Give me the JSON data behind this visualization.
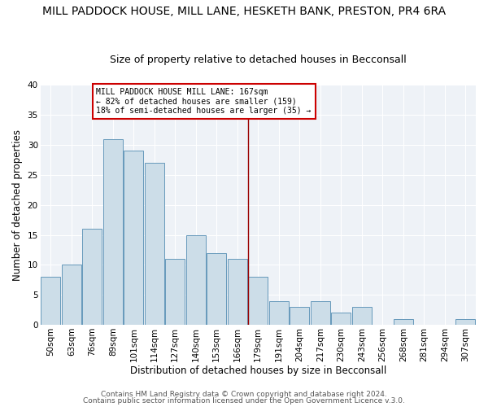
{
  "title": "MILL PADDOCK HOUSE, MILL LANE, HESKETH BANK, PRESTON, PR4 6RA",
  "subtitle": "Size of property relative to detached houses in Becconsall",
  "xlabel": "Distribution of detached houses by size in Becconsall",
  "ylabel": "Number of detached properties",
  "bar_labels": [
    "50sqm",
    "63sqm",
    "76sqm",
    "89sqm",
    "101sqm",
    "114sqm",
    "127sqm",
    "140sqm",
    "153sqm",
    "166sqm",
    "179sqm",
    "191sqm",
    "204sqm",
    "217sqm",
    "230sqm",
    "243sqm",
    "256sqm",
    "268sqm",
    "281sqm",
    "294sqm",
    "307sqm"
  ],
  "bar_heights": [
    8,
    10,
    16,
    31,
    29,
    27,
    11,
    15,
    12,
    11,
    8,
    4,
    3,
    4,
    2,
    3,
    0,
    1,
    0,
    0,
    1
  ],
  "bar_color": "#ccdde8",
  "bar_edge_color": "#6699bb",
  "ylim": [
    0,
    40
  ],
  "marker_line_color": "#990000",
  "annotation_line1": "MILL PADDOCK HOUSE MILL LANE: 167sqm",
  "annotation_line2": "← 82% of detached houses are smaller (159)",
  "annotation_line3": "18% of semi-detached houses are larger (35) →",
  "annotation_box_edge_color": "#cc0000",
  "footer1": "Contains HM Land Registry data © Crown copyright and database right 2024.",
  "footer2": "Contains public sector information licensed under the Open Government Licence v.3.0.",
  "bg_color": "#ffffff",
  "plot_bg_color": "#eef2f7",
  "grid_color": "#ffffff",
  "title_fontsize": 10,
  "subtitle_fontsize": 9,
  "axis_label_fontsize": 8.5,
  "tick_fontsize": 7.5,
  "footer_fontsize": 6.5
}
